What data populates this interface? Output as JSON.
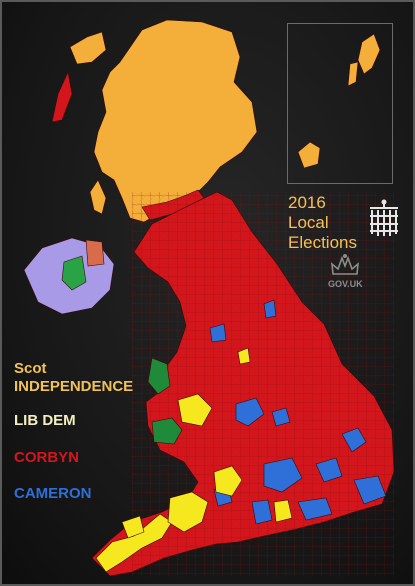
{
  "title": {
    "line1": "2016",
    "line2": "Local",
    "line3": "Elections"
  },
  "gov_label": "GOV.UK",
  "legend": {
    "scot_line1": "Scot",
    "scot_line2": "INDEPENDENCE",
    "libdem": "LIB DEM",
    "corbyn": "CORBYN",
    "cameron": "CAMERON"
  },
  "colors": {
    "scot": "#f4ae3a",
    "libdem": "#f5e81f",
    "labour": "#d2161c",
    "conservative": "#2f6fd8",
    "plaid": "#1f8a3a",
    "ni_purple": "#a89ae6",
    "ni_green": "#2aa246",
    "ni_orange": "#d86b4a",
    "libdem_text": "#f3f0c0",
    "scot_text": "#f2c25a"
  },
  "icons": [
    "portcullis-icon",
    "crown-icon"
  ]
}
